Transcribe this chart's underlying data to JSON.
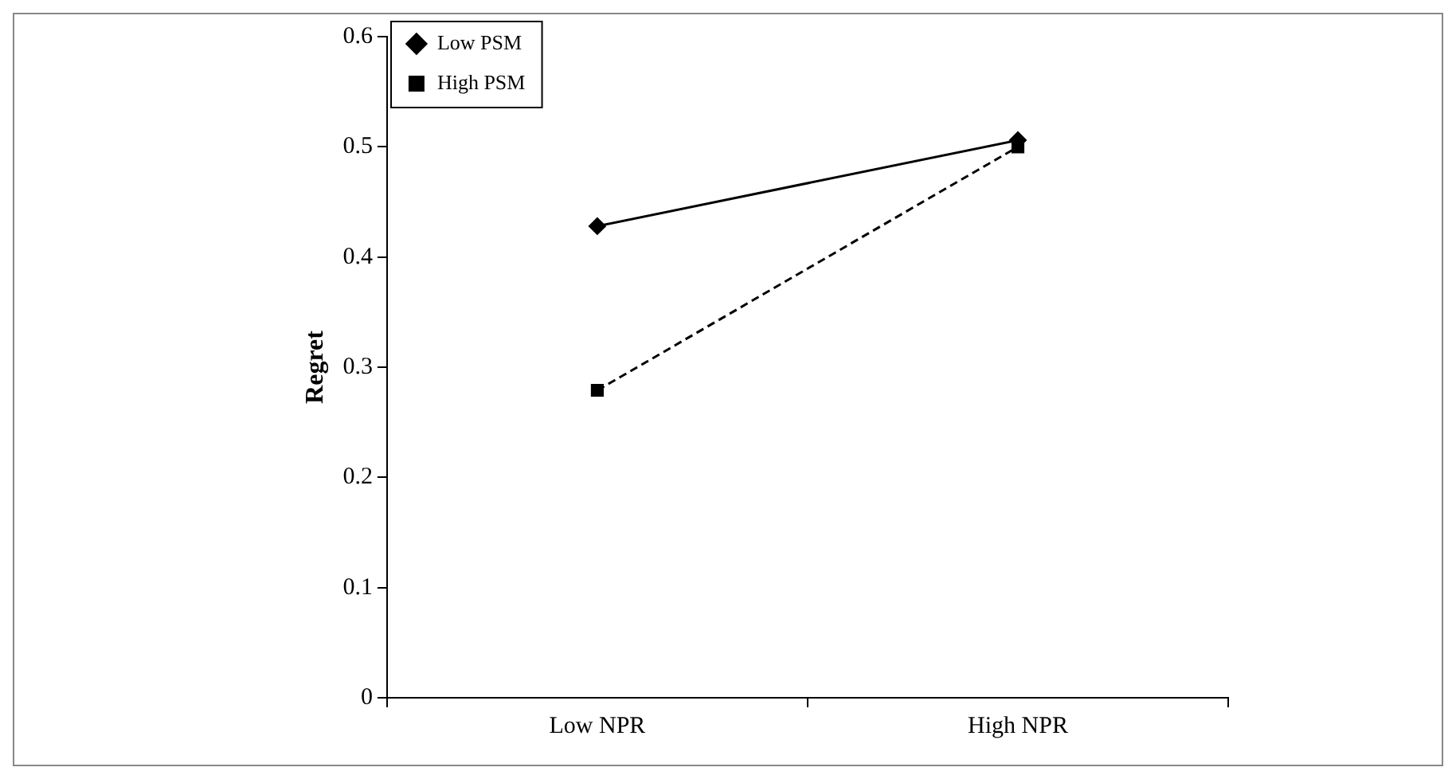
{
  "chart_data": {
    "type": "line",
    "ylabel": "Regret",
    "categories": [
      "Low NPR",
      "High NPR"
    ],
    "series": [
      {
        "name": "Low PSM",
        "color": "#000000",
        "values": [
          0.428,
          0.506
        ],
        "marker": "diamond",
        "line_style": "solid"
      },
      {
        "name": "High PSM",
        "color": "#000000",
        "values": [
          0.279,
          0.5
        ],
        "marker": "square",
        "line_style": "dashed"
      }
    ],
    "ylim": [
      0,
      0.6
    ],
    "yticks": [
      0,
      0.1,
      0.2,
      0.3,
      0.4,
      0.5,
      0.6
    ],
    "grid": false,
    "legend": "top left"
  }
}
